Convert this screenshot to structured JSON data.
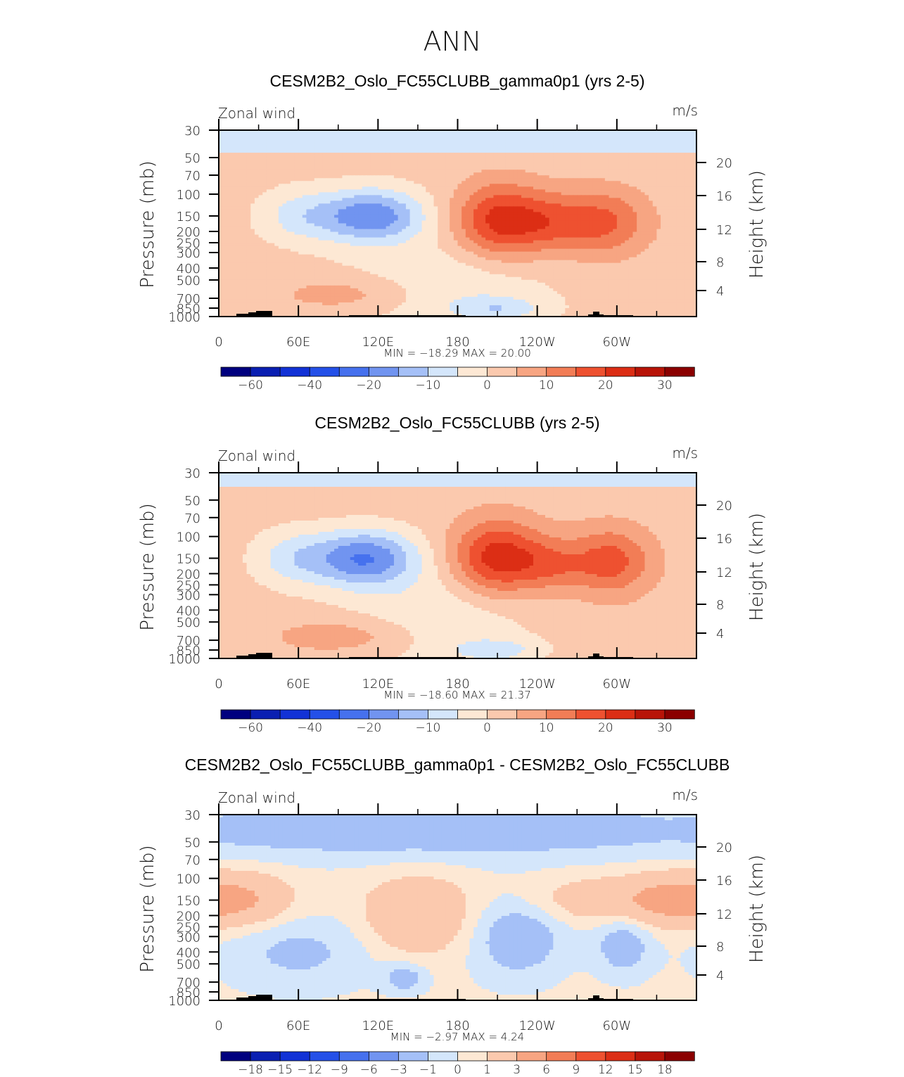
{
  "figure": {
    "season": "ANN"
  },
  "chart_data": [
    {
      "type": "heatmap",
      "title": "CESM2B2_Oslo_FC55CLUBB_gamma0p1 (yrs 2-5)",
      "left_label": "Zonal wind",
      "units": "m/s",
      "ylabel": "Pressure (mb)",
      "ylabel_right": "Height (km)",
      "minmax": "MIN = −18.29   MAX =   20.00",
      "x_ticks": [
        "0",
        "60E",
        "120E",
        "180",
        "120W",
        "60W"
      ],
      "y_ticks": [
        "30",
        "50",
        "70",
        "100",
        "150",
        "200",
        "250",
        "300",
        "400",
        "500",
        "700",
        "850",
        "1000"
      ],
      "y_ticks_right": [
        "20",
        "16",
        "12",
        "8",
        "4"
      ],
      "colorbar_labels": [
        "−60",
        "−40",
        "−20",
        "−10",
        "0",
        "10",
        "20",
        "30"
      ],
      "colorbar_levels": [
        -70,
        -60,
        -50,
        -40,
        -30,
        -20,
        -15,
        -10,
        -5,
        0,
        5,
        10,
        15,
        20,
        25,
        30,
        35
      ],
      "jets": [
        {
          "name": "easterly_jet_west",
          "lon": 115,
          "p": 150,
          "value": -18.29
        },
        {
          "name": "westerly_jet_main",
          "lon": 213,
          "p": 170,
          "value": 20.0
        },
        {
          "name": "westerly_jet_east",
          "lon": 296,
          "p": 175,
          "value": 13
        }
      ]
    },
    {
      "type": "heatmap",
      "title": "CESM2B2_Oslo_FC55CLUBB (yrs 2-5)",
      "left_label": "Zonal wind",
      "units": "m/s",
      "ylabel": "Pressure (mb)",
      "ylabel_right": "Height (km)",
      "minmax": "MIN = −18.60   MAX =   21.37",
      "x_ticks": [
        "0",
        "60E",
        "120E",
        "180",
        "120W",
        "60W"
      ],
      "y_ticks": [
        "30",
        "50",
        "70",
        "100",
        "150",
        "200",
        "250",
        "300",
        "400",
        "500",
        "700",
        "850",
        "1000"
      ],
      "y_ticks_right": [
        "20",
        "16",
        "12",
        "8",
        "4"
      ],
      "colorbar_labels": [
        "−60",
        "−40",
        "−20",
        "−10",
        "0",
        "10",
        "20",
        "30"
      ],
      "colorbar_levels": [
        -70,
        -60,
        -50,
        -40,
        -30,
        -20,
        -15,
        -10,
        -5,
        0,
        5,
        10,
        15,
        20,
        25,
        30,
        35
      ],
      "jets": [
        {
          "name": "easterly_jet_west",
          "lon": 110,
          "p": 150,
          "value": -18.6
        },
        {
          "name": "westerly_jet_main",
          "lon": 210,
          "p": 150,
          "value": 21.37
        },
        {
          "name": "westerly_jet_east",
          "lon": 297,
          "p": 160,
          "value": 14
        }
      ]
    },
    {
      "type": "heatmap",
      "title": "CESM2B2_Oslo_FC55CLUBB_gamma0p1 - CESM2B2_Oslo_FC55CLUBB",
      "left_label": "Zonal wind",
      "units": "m/s",
      "ylabel": "Pressure (mb)",
      "ylabel_right": "Height (km)",
      "minmax": "MIN =    −2.97   MAX =    4.24",
      "x_ticks": [
        "0",
        "60E",
        "120E",
        "180",
        "120W",
        "60W"
      ],
      "y_ticks": [
        "30",
        "50",
        "70",
        "100",
        "150",
        "200",
        "250",
        "300",
        "400",
        "500",
        "700",
        "850",
        "1000"
      ],
      "y_ticks_right": [
        "20",
        "16",
        "12",
        "8",
        "4"
      ],
      "colorbar_labels": [
        "−18",
        "−15",
        "−12",
        "−9",
        "−6",
        "−3",
        "−1",
        "0",
        "1",
        "3",
        "6",
        "9",
        "12",
        "15",
        "18"
      ],
      "colorbar_levels": [
        -21,
        -18,
        -15,
        -12,
        -9,
        -6,
        -3,
        -1,
        0,
        1,
        3,
        6,
        9,
        12,
        15,
        18,
        21
      ]
    }
  ]
}
